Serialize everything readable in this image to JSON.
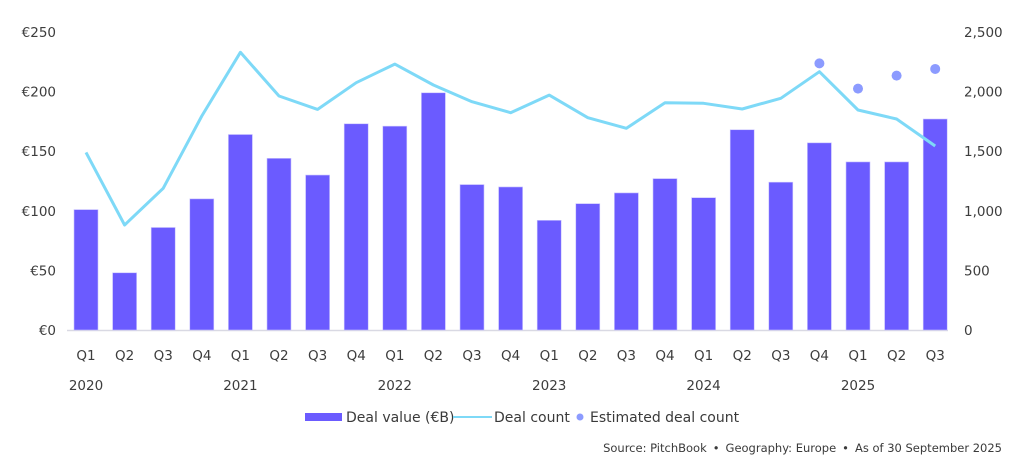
{
  "chart_data": {
    "type": "bar",
    "title": "",
    "xlabel": "",
    "ylabel": "",
    "y2label": "",
    "quarters": [
      "Q1",
      "Q2",
      "Q3",
      "Q4",
      "Q1",
      "Q2",
      "Q3",
      "Q4",
      "Q1",
      "Q2",
      "Q3",
      "Q4",
      "Q1",
      "Q2",
      "Q3",
      "Q4",
      "Q1",
      "Q2",
      "Q3",
      "Q4",
      "Q1",
      "Q2",
      "Q3"
    ],
    "years": [
      {
        "label": "2020",
        "index": 0
      },
      {
        "label": "2021",
        "index": 4
      },
      {
        "label": "2022",
        "index": 8
      },
      {
        "label": "2023",
        "index": 12
      },
      {
        "label": "2024",
        "index": 16
      },
      {
        "label": "2025",
        "index": 20
      }
    ],
    "categories": [
      "2020 Q1",
      "2020 Q2",
      "2020 Q3",
      "2020 Q4",
      "2021 Q1",
      "2021 Q2",
      "2021 Q3",
      "2021 Q4",
      "2022 Q1",
      "2022 Q2",
      "2022 Q3",
      "2022 Q4",
      "2023 Q1",
      "2023 Q2",
      "2023 Q3",
      "2023 Q4",
      "2024 Q1",
      "2024 Q2",
      "2024 Q3",
      "2024 Q4",
      "2025 Q1",
      "2025 Q2",
      "2025 Q3"
    ],
    "series": [
      {
        "name": "Deal value (€B)",
        "type": "bar",
        "axis": "left",
        "color": "#6b5bff",
        "values": [
          101,
          48,
          86,
          110,
          164,
          144,
          130,
          173,
          171,
          199,
          122,
          120,
          92,
          106,
          115,
          127,
          111,
          168,
          124,
          157,
          141,
          141,
          177
        ]
      },
      {
        "name": "Deal count",
        "type": "line",
        "axis": "right",
        "color": "#7ed9f7",
        "values": [
          1490,
          881,
          1189,
          1795,
          2330,
          1963,
          1851,
          2075,
          2231,
          2055,
          1915,
          1823,
          1971,
          1781,
          1692,
          1907,
          1902,
          1854,
          1944,
          2167,
          1846,
          1770,
          1544
        ]
      },
      {
        "name": "Estimated deal count",
        "type": "scatter",
        "axis": "right",
        "color": "#8c9bff",
        "points": [
          {
            "index": 19,
            "value": 2237
          },
          {
            "index": 20,
            "value": 2025
          },
          {
            "index": 21,
            "value": 2134
          },
          {
            "index": 22,
            "value": 2190
          }
        ]
      }
    ],
    "ylim": [
      0,
      250
    ],
    "y2lim": [
      0,
      2500
    ],
    "yticks": [
      "€0",
      "€50",
      "€100",
      "€150",
      "€200",
      "€250"
    ],
    "yticks_values": [
      0,
      50,
      100,
      150,
      200,
      250
    ],
    "y2ticks": [
      "0",
      "500",
      "1,000",
      "1,500",
      "2,000",
      "2,500"
    ],
    "y2ticks_values": [
      0,
      500,
      1000,
      1500,
      2000,
      2500
    ],
    "grid": false,
    "legend_position": "bottom-center",
    "legend": [
      "Deal value (€B)",
      "Deal count",
      "Estimated deal count"
    ]
  },
  "source": {
    "source": "Source: PitchBook",
    "geography": "Geography: Europe",
    "asof": "As of 30 September 2025",
    "separator": "•"
  }
}
